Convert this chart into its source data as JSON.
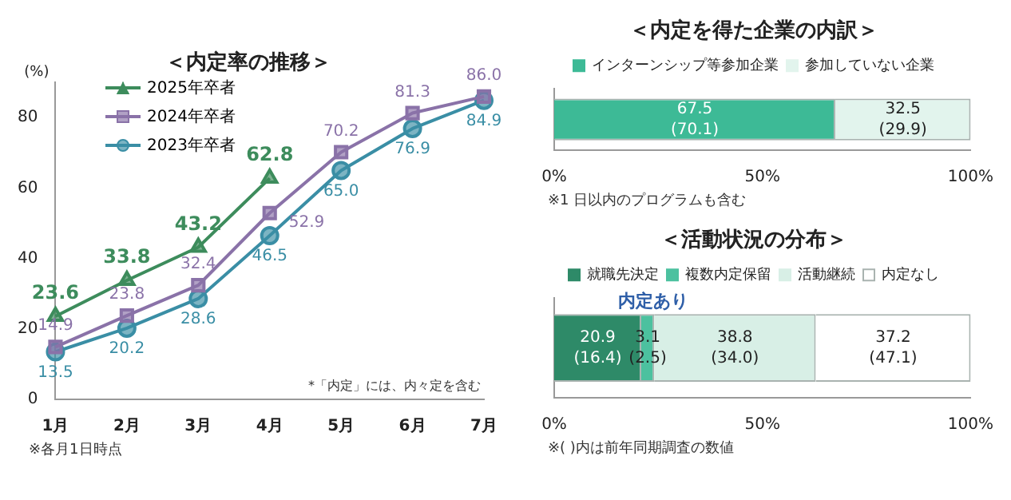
{
  "chart_data": [
    {
      "type": "line",
      "title": "＜内定率の推移＞",
      "ylabel": "(%)",
      "categories": [
        "1月",
        "2月",
        "3月",
        "4月",
        "5月",
        "6月",
        "7月"
      ],
      "ylim": [
        0,
        90
      ],
      "yticks": [
        0,
        20,
        40,
        60,
        80
      ],
      "legend": "top left",
      "line_style": "solid",
      "series": [
        {
          "name": "2025年卒者",
          "color": "#3d8c5c",
          "marker": "triangle",
          "values": [
            23.6,
            33.8,
            43.2,
            62.8,
            null,
            null,
            null
          ],
          "value_labels": [
            "23.6",
            "33.8",
            "43.2",
            "62.8",
            null,
            null,
            null
          ]
        },
        {
          "name": "2024年卒者",
          "color": "#8a72a8",
          "marker": "square",
          "values": [
            14.9,
            23.8,
            32.4,
            52.9,
            70.2,
            81.3,
            86.0
          ],
          "value_labels": [
            "14.9",
            "23.8",
            "32.4",
            "52.9",
            "70.2",
            "81.3",
            "86.0"
          ]
        },
        {
          "name": "2023年卒者",
          "color": "#3a8ea5",
          "marker": "circle",
          "values": [
            13.5,
            20.2,
            28.6,
            46.5,
            65.0,
            76.9,
            84.9
          ],
          "value_labels": [
            "13.5",
            "20.2",
            "28.6",
            "46.5",
            "65.0",
            "76.9",
            "84.9"
          ]
        }
      ],
      "annotations": [
        "*「内定」には、内々定を含む",
        "※各月1日時点"
      ]
    },
    {
      "type": "bar",
      "orientation": "horizontal",
      "stacked": true,
      "title": "＜内定を得た企業の内訳＞",
      "categories": [
        null
      ],
      "xlim": [
        0,
        100
      ],
      "xticks": [
        {
          "value": 0,
          "label": "0%"
        },
        {
          "value": 50,
          "label": "50%"
        },
        {
          "value": 100,
          "label": "100%"
        }
      ],
      "legend": "top",
      "series": [
        {
          "name": "インターンシップ等参加企業",
          "color": "#3dba96",
          "values": [
            67.5
          ],
          "value_labels": [
            "67.5\n(70.1)"
          ]
        },
        {
          "name": "参加していない企業",
          "color": "#e2f4ed",
          "values": [
            32.5
          ],
          "value_labels": [
            "32.5\n(29.9)"
          ]
        }
      ],
      "annotations": [
        "※1 日以内のプログラムも含む"
      ]
    },
    {
      "type": "bar",
      "orientation": "horizontal",
      "stacked": true,
      "title": "＜活動状況の分布＞",
      "categories": [
        null
      ],
      "xlim": [
        0,
        100
      ],
      "xticks": [
        {
          "value": 0,
          "label": "0%"
        },
        {
          "value": 50,
          "label": "50%"
        },
        {
          "value": 100,
          "label": "100%"
        }
      ],
      "legend": "top",
      "series": [
        {
          "name": "就職先決定",
          "color": "#2e8a68",
          "values": [
            20.9
          ],
          "value_labels": [
            "20.9\n(16.4)"
          ]
        },
        {
          "name": "複数内定保留",
          "color": "#4cc19f",
          "values": [
            3.1
          ],
          "value_labels": [
            "3.1\n(2.5)"
          ]
        },
        {
          "name": "活動継続",
          "color": "#d8efe6",
          "values": [
            38.8
          ],
          "value_labels": [
            "38.8\n(34.0)"
          ]
        },
        {
          "name": "内定なし",
          "color": "#ffffff",
          "values": [
            37.2
          ],
          "value_labels": [
            "37.2\n(47.1)"
          ]
        }
      ],
      "annotations": [
        "内定あり",
        "※( )内は前年同期調査の数値"
      ]
    }
  ]
}
